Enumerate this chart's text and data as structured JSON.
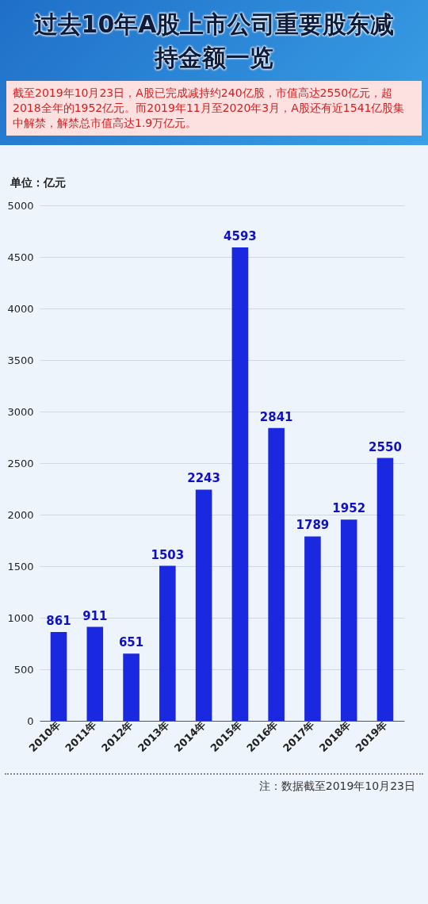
{
  "chart_data": {
    "type": "bar",
    "title": "过去10年A股上市公司重要股东减持金额一览",
    "subtitle": "截至2019年10月23日，A股已完成减持约240亿股，市值高达2550亿元，超2018全年的1952亿元。而2019年11月至2020年3月，A股还有近1541亿股集中解禁，解禁总市值高达1.9万亿元。",
    "ylabel": "单位：亿元",
    "categories": [
      "2010年",
      "2011年",
      "2012年",
      "2013年",
      "2014年",
      "2015年",
      "2016年",
      "2017年",
      "2018年",
      "2019年"
    ],
    "values": [
      861,
      911,
      651,
      1503,
      2243,
      4593,
      2841,
      1789,
      1952,
      2550
    ],
    "color": "#1a28e0",
    "ylim": [
      0,
      5000
    ],
    "yticks": [
      0,
      500,
      1000,
      1500,
      2000,
      2500,
      3000,
      3500,
      4000,
      4500,
      5000
    ],
    "grid": "y",
    "data_labels": true,
    "annotations": [
      "注：数据截至2019年10月23日"
    ]
  }
}
